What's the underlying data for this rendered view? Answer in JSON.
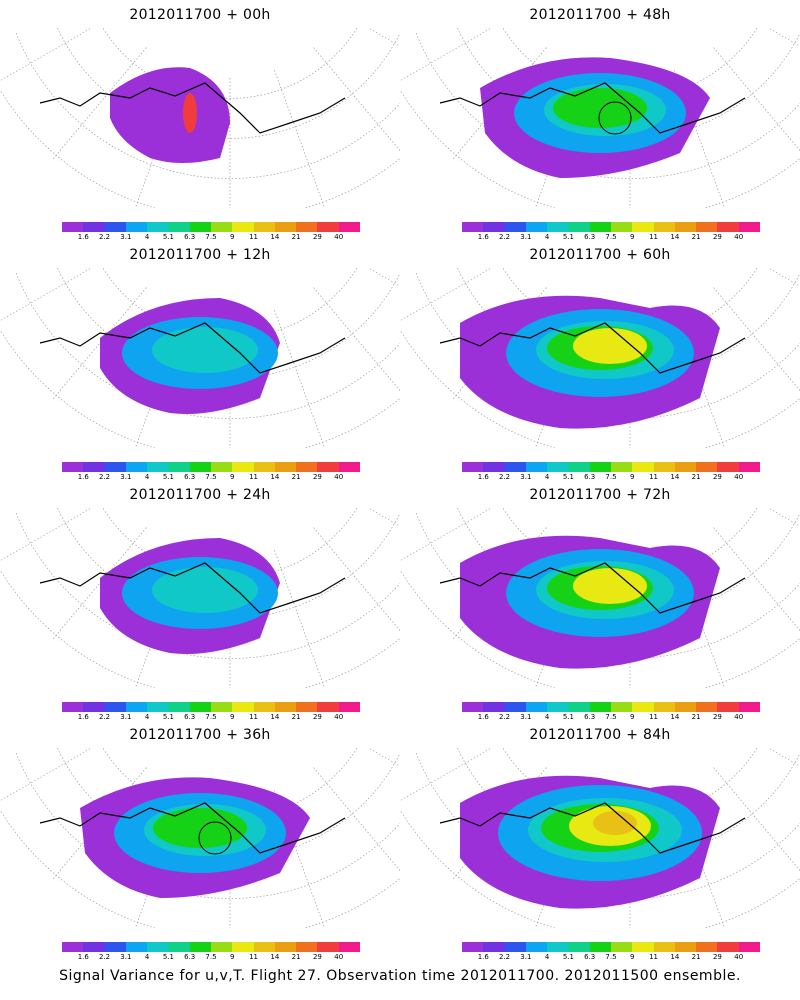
{
  "colorbar": {
    "labels": [
      "1.6",
      "2.2",
      "3.1",
      "4",
      "5.1",
      "6.3",
      "7.5",
      "9",
      "11",
      "14",
      "21",
      "29",
      "40"
    ],
    "colors": [
      "#9b30d8",
      "#7232e0",
      "#2e56ee",
      "#0fa4f0",
      "#10c8c8",
      "#10d08a",
      "#16d216",
      "#98dc16",
      "#e8e812",
      "#e8c016",
      "#e8a012",
      "#f07020",
      "#f03c3c",
      "#f01c8c"
    ]
  },
  "panels": [
    {
      "title": "2012011700 + 00h",
      "level": 0,
      "circle": false
    },
    {
      "title": "2012011700 + 48h",
      "level": 2,
      "circle": true
    },
    {
      "title": "2012011700 + 12h",
      "level": 1,
      "circle": false
    },
    {
      "title": "2012011700 + 60h",
      "level": 3,
      "circle": false
    },
    {
      "title": "2012011700 + 24h",
      "level": 1,
      "circle": false
    },
    {
      "title": "2012011700 + 72h",
      "level": 3,
      "circle": false
    },
    {
      "title": "2012011700 + 36h",
      "level": 2,
      "circle": true
    },
    {
      "title": "2012011700 + 84h",
      "level": 4,
      "circle": false
    }
  ],
  "footer": "Signal Variance for u,v,T. Flight 27. Observation time 2012011700. 2012011500 ensemble."
}
